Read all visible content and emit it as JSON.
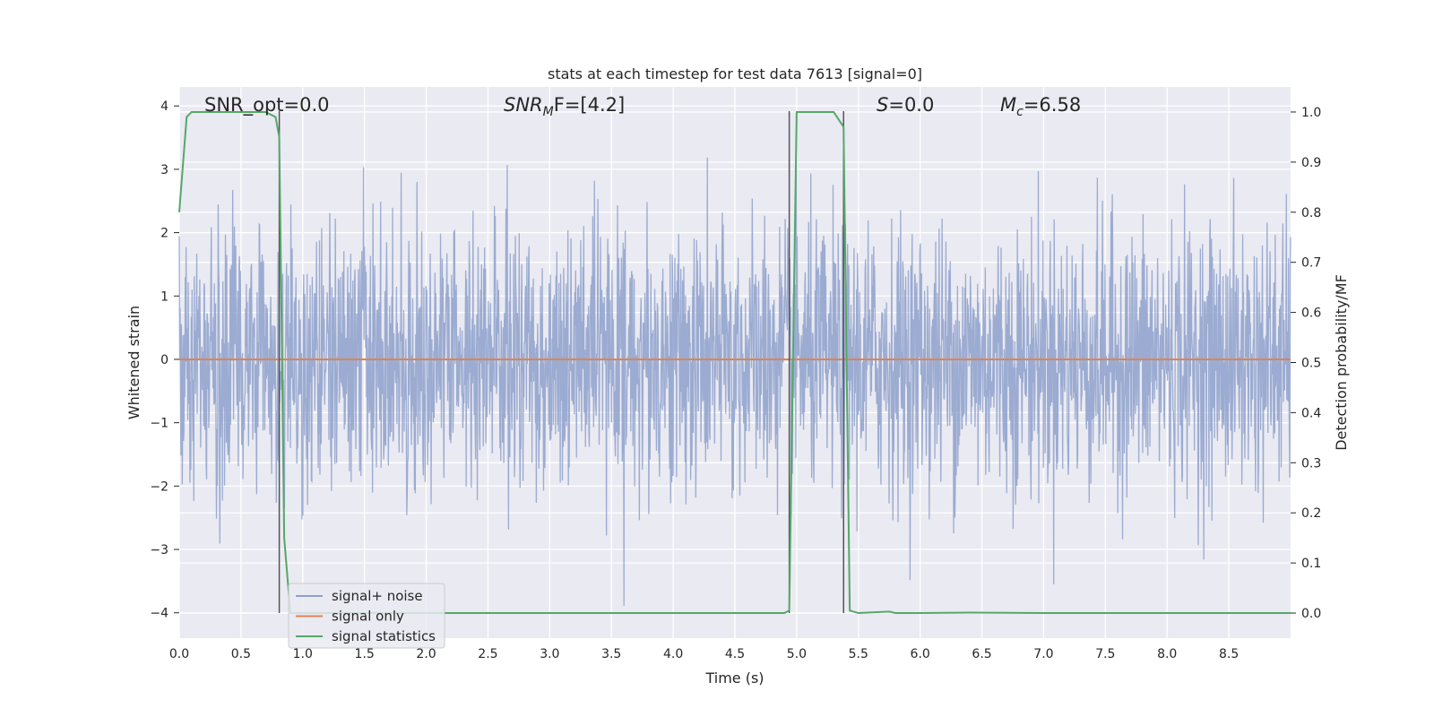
{
  "chart_data": {
    "type": "line",
    "title": "stats at each timestep for test data 7613 [signal=0]",
    "xlabel": "Time (s)",
    "ylabel": "Whitened strain",
    "y2label": "Detection probability/MF",
    "xlim": [
      0,
      9.0
    ],
    "ylim": [
      -4.4,
      4.3
    ],
    "y2lim": [
      -0.05,
      1.05
    ],
    "xticks": [
      "0.0",
      "0.5",
      "1.0",
      "1.5",
      "2.0",
      "2.5",
      "3.0",
      "3.5",
      "4.0",
      "4.5",
      "5.0",
      "5.5",
      "6.0",
      "6.5",
      "7.0",
      "7.5",
      "8.0",
      "8.5"
    ],
    "yticks": [
      "4",
      "3",
      "2",
      "1",
      "0",
      "−1",
      "−2",
      "−3",
      "−4"
    ],
    "y2ticks": [
      "1.0",
      "0.9",
      "0.8",
      "0.7",
      "0.6",
      "0.5",
      "0.4",
      "0.3",
      "0.2",
      "0.1",
      "0.0"
    ],
    "annotations": {
      "snr_opt": "SNR_opt=0.0",
      "snr_mf_base": "SNR",
      "snr_mf_sub": "M",
      "snr_mf_rest": "F=[4.2]",
      "s_var": "S",
      "s_rest": "=0.0",
      "mc_base": "M",
      "mc_sub": "c",
      "mc_rest": "=6.58"
    },
    "grid": true,
    "legend_position": "lower-left",
    "series": [
      {
        "name": "signal+ noise",
        "color": "#8da0cb",
        "kind": "noise",
        "approx_range": [
          -4.0,
          4.0
        ]
      },
      {
        "name": "signal only",
        "color": "#dd8452",
        "kind": "flat",
        "value": 0
      },
      {
        "name": "signal statistics",
        "color": "#55a868",
        "axis": "right",
        "x": [
          0.0,
          0.06,
          0.1,
          0.2,
          0.5,
          0.7,
          0.78,
          0.81,
          0.85,
          0.9,
          1.0,
          2.0,
          3.0,
          4.0,
          4.9,
          4.94,
          5.0,
          5.05,
          5.3,
          5.38,
          5.43,
          5.5,
          5.75,
          5.8,
          6.0,
          6.4,
          7.0,
          8.0,
          9.0
        ],
        "y": [
          0.8,
          0.99,
          1.0,
          1.0,
          1.0,
          1.0,
          0.99,
          0.95,
          0.15,
          0.0,
          0.0,
          0.0,
          0.0,
          0.0,
          0.0,
          0.005,
          1.0,
          1.0,
          1.0,
          0.97,
          0.005,
          0.0,
          0.003,
          0.0,
          0.0,
          0.001,
          0.0,
          0.0,
          0.0
        ]
      }
    ],
    "vertical_markers": [
      0.81,
      4.94,
      5.38
    ]
  }
}
